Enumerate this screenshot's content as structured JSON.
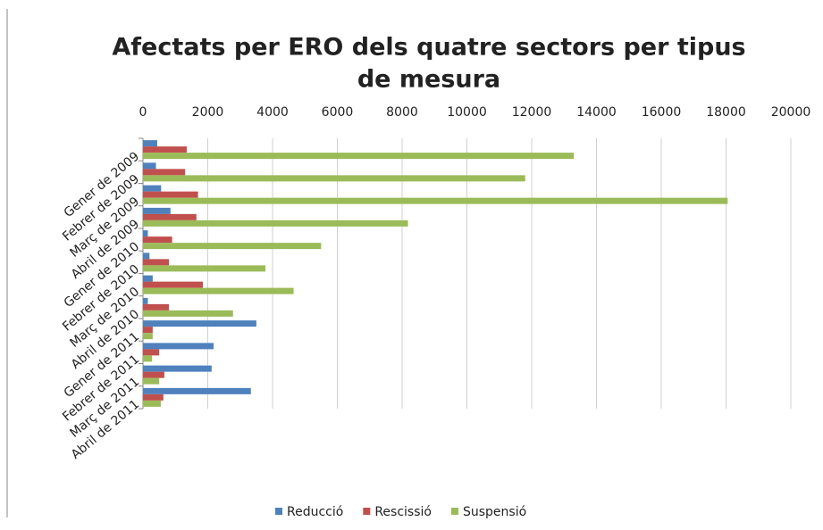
{
  "chart_data": {
    "type": "bar",
    "orientation": "horizontal",
    "title": "Afectats per ERO dels quatre sectors per tipus de mesura",
    "categories": [
      "Gener de 2009",
      "Febrer de 2009",
      "Març de 2009",
      "Abril de 2009",
      "Gener de 2010",
      "Febrer de 2010",
      "Març de 2010",
      "Abril de 2010",
      "Gener de 2011",
      "Febrer de 2011",
      "Març de 2011",
      "Abril de 2011"
    ],
    "series": [
      {
        "name": "Reducció",
        "color": "#4f81bd",
        "values": [
          440,
          400,
          560,
          850,
          150,
          200,
          300,
          150,
          3500,
          2180,
          2120,
          3330
        ]
      },
      {
        "name": "Rescissió",
        "color": "#c0504d",
        "values": [
          1350,
          1300,
          1700,
          1650,
          900,
          800,
          1850,
          800,
          300,
          500,
          660,
          630
        ]
      },
      {
        "name": "Suspensió",
        "color": "#9bbb59",
        "values": [
          13300,
          11800,
          18050,
          8180,
          5500,
          3780,
          4650,
          2780,
          300,
          280,
          500,
          550
        ]
      }
    ],
    "xlim": [
      0,
      20000
    ],
    "xticks": [
      0,
      2000,
      4000,
      6000,
      8000,
      10000,
      12000,
      14000,
      16000,
      18000,
      20000
    ],
    "legend": "bottom"
  }
}
